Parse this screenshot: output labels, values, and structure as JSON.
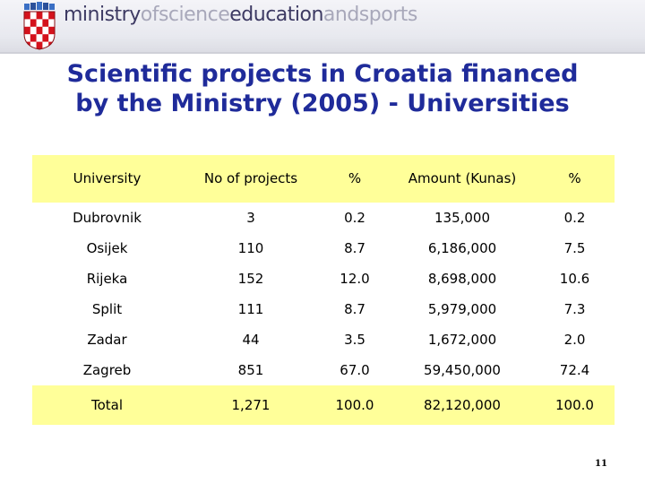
{
  "header": {
    "logo_part1": "ministry",
    "logo_part2": "ofscience",
    "logo_part3": "education",
    "logo_part4": "andsports"
  },
  "title": {
    "line1": "Scientific projects in Croatia financed",
    "line2": "by the Ministry (2005) - Universities"
  },
  "table": {
    "headers": [
      "University",
      "No of projects",
      "%",
      "Amount (Kunas)",
      "%"
    ],
    "rows": [
      [
        "Dubrovnik",
        "3",
        "0.2",
        "135,000",
        "0.2"
      ],
      [
        "Osijek",
        "110",
        "8.7",
        "6,186,000",
        "7.5"
      ],
      [
        "Rijeka",
        "152",
        "12.0",
        "8,698,000",
        "10.6"
      ],
      [
        "Split",
        "111",
        "8.7",
        "5,979,000",
        "7.3"
      ],
      [
        "Zadar",
        "44",
        "3.5",
        "1,672,000",
        "2.0"
      ],
      [
        "Zagreb",
        "851",
        "67.0",
        "59,450,000",
        "72.4"
      ]
    ],
    "total": [
      "Total",
      "1,271",
      "100.0",
      "82,120,000",
      "100.0"
    ]
  },
  "footer": {
    "page_number": "11"
  },
  "colors": {
    "title": "#1f2b9a",
    "highlight": "#ffff99",
    "logo_dark": "#3d3a63",
    "logo_light": "#a8a8ba",
    "crest_red": "#d4121c"
  }
}
